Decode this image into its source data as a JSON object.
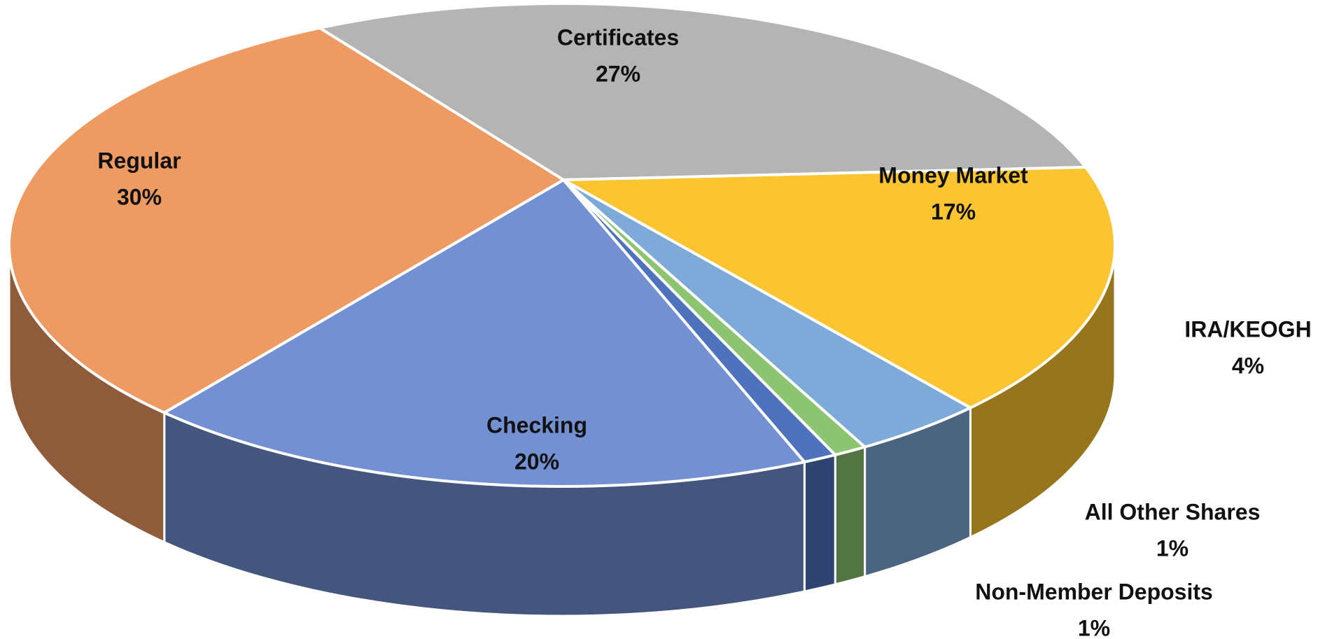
{
  "chart_data": {
    "type": "pie",
    "categories": [
      "Certificates",
      "Money Market",
      "IRA/KEOGH",
      "All Other Shares",
      "Non-Member Deposits",
      "Checking",
      "Regular"
    ],
    "values": [
      27,
      17,
      4,
      1,
      1,
      20,
      30
    ],
    "value_labels": [
      "27%",
      "17%",
      "4%",
      "1%",
      "1%",
      "20%",
      "30%"
    ],
    "colors": [
      "#b4b4b4",
      "#fbc531",
      "#7eaad9",
      "#8cc472",
      "#4f72bd",
      "#7390d2",
      "#ee9a63"
    ]
  }
}
